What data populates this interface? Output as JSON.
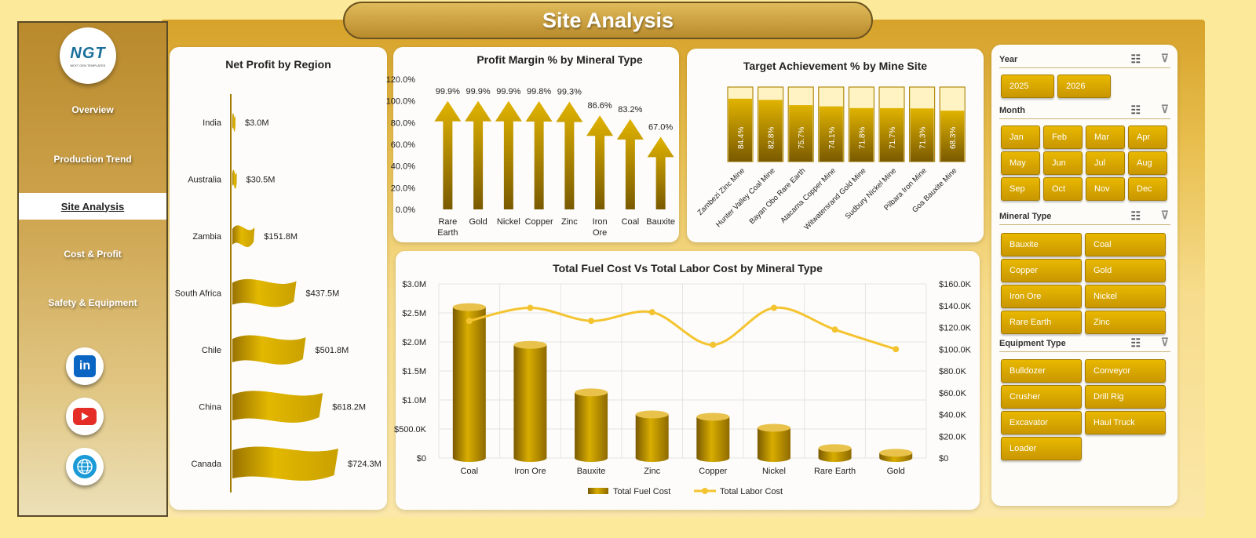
{
  "app": {
    "title": "Site Analysis"
  },
  "logo": {
    "text": "NGT",
    "subtitle": "NEXT GEN TEMPLATES"
  },
  "sidebar": {
    "items": [
      {
        "label": "Overview",
        "active": false
      },
      {
        "label": "Production Trend",
        "active": false
      },
      {
        "label": "Site Analysis",
        "active": true
      },
      {
        "label": "Cost & Profit",
        "active": false
      },
      {
        "label": "Safety & Equipment",
        "active": false
      }
    ],
    "social": [
      {
        "name": "linkedin-icon",
        "glyph": "in",
        "color": "#0a66c2"
      },
      {
        "name": "youtube-icon",
        "glyph": "▶",
        "color": "#e52d27"
      },
      {
        "name": "globe-icon",
        "glyph": "🌐",
        "color": "#1a9ad6"
      }
    ]
  },
  "colors": {
    "gold": "#c9a000",
    "gold_dark": "#7a5a00",
    "line": "#f4c430",
    "accent": "#e8b800"
  },
  "chart_data": [
    {
      "id": "net-profit",
      "type": "bar",
      "title": "Net Profit by Region",
      "categories": [
        "India",
        "Australia",
        "Zambia",
        "South Africa",
        "Chile",
        "China",
        "Canada"
      ],
      "values": [
        3.0,
        30.5,
        151.8,
        437.5,
        501.8,
        618.2,
        724.3
      ],
      "labels": [
        "$3.0M",
        "$30.5M",
        "$151.8M",
        "$437.5M",
        "$501.8M",
        "$618.2M",
        "$724.3M"
      ],
      "unit": "$M",
      "orientation": "horizontal"
    },
    {
      "id": "profit-margin",
      "type": "bar",
      "title": "Profit Margin % by Mineral Type",
      "categories": [
        "Rare Earth",
        "Gold",
        "Nickel",
        "Copper",
        "Zinc",
        "Iron Ore",
        "Coal",
        "Bauxite"
      ],
      "values": [
        99.9,
        99.9,
        99.9,
        99.8,
        99.3,
        86.6,
        83.2,
        67.0
      ],
      "labels": [
        "99.9%",
        "99.9%",
        "99.9%",
        "99.8%",
        "99.3%",
        "86.6%",
        "83.2%",
        "67.0%"
      ],
      "yticks": [
        "0.0%",
        "20.0%",
        "40.0%",
        "60.0%",
        "80.0%",
        "100.0%",
        "120.0%"
      ],
      "ylim": [
        0,
        120
      ]
    },
    {
      "id": "target-achievement",
      "type": "bar",
      "title": "Target Achievement % by Mine Site",
      "categories": [
        "Zambezi Zinc Mine",
        "Hunter Valley Coal Mine",
        "Bayan Obo Rare Earth",
        "Atacama Copper Mine",
        "Witwatersrand Gold Mine",
        "Sudbury Nickel Mine",
        "Pilbara Iron Mine",
        "Goa Bauxite Mine"
      ],
      "values": [
        84.4,
        82.8,
        75.7,
        74.1,
        71.8,
        71.7,
        71.3,
        68.3
      ],
      "labels": [
        "84.4%",
        "82.8%",
        "75.7%",
        "74.1%",
        "71.8%",
        "71.7%",
        "71.3%",
        "68.3%"
      ],
      "ylim": [
        0,
        100
      ]
    },
    {
      "id": "fuel-labor",
      "type": "bar",
      "title": "Total Fuel Cost Vs Total Labor Cost by Mineral Type",
      "categories": [
        "Coal",
        "Iron Ore",
        "Bauxite",
        "Zinc",
        "Copper",
        "Nickel",
        "Rare Earth",
        "Gold"
      ],
      "series": [
        {
          "name": "Total Fuel Cost",
          "type": "bar",
          "axis": "left",
          "values": [
            2.6,
            1.95,
            1.13,
            0.75,
            0.71,
            0.52,
            0.17,
            0.09
          ]
        },
        {
          "name": "Total Labor Cost",
          "type": "line",
          "axis": "right",
          "values": [
            126,
            138,
            126,
            134,
            104,
            138,
            118,
            100
          ]
        }
      ],
      "y_left_ticks": [
        "$0",
        "$500.0K",
        "$1.0M",
        "$1.5M",
        "$2.0M",
        "$2.5M",
        "$3.0M"
      ],
      "y_right_ticks": [
        "$0",
        "$20.0K",
        "$40.0K",
        "$60.0K",
        "$80.0K",
        "$100.0K",
        "$120.0K",
        "$140.0K",
        "$160.0K"
      ],
      "ylim_left": [
        0,
        3.0
      ],
      "ylim_right": [
        0,
        160
      ]
    }
  ],
  "slicers": [
    {
      "title": "Year",
      "options": [
        "2025",
        "2026"
      ]
    },
    {
      "title": "Month",
      "options": [
        "Jan",
        "Feb",
        "Mar",
        "Apr",
        "May",
        "Jun",
        "Jul",
        "Aug",
        "Sep",
        "Oct",
        "Nov",
        "Dec"
      ]
    },
    {
      "title": "Mineral Type",
      "options": [
        "Bauxite",
        "Coal",
        "Copper",
        "Gold",
        "Iron Ore",
        "Nickel",
        "Rare Earth",
        "Zinc"
      ]
    },
    {
      "title": "Equipment Type",
      "options": [
        "Bulldozer",
        "Conveyor",
        "Crusher",
        "Drill Rig",
        "Excavator",
        "Haul Truck",
        "Loader"
      ]
    }
  ]
}
